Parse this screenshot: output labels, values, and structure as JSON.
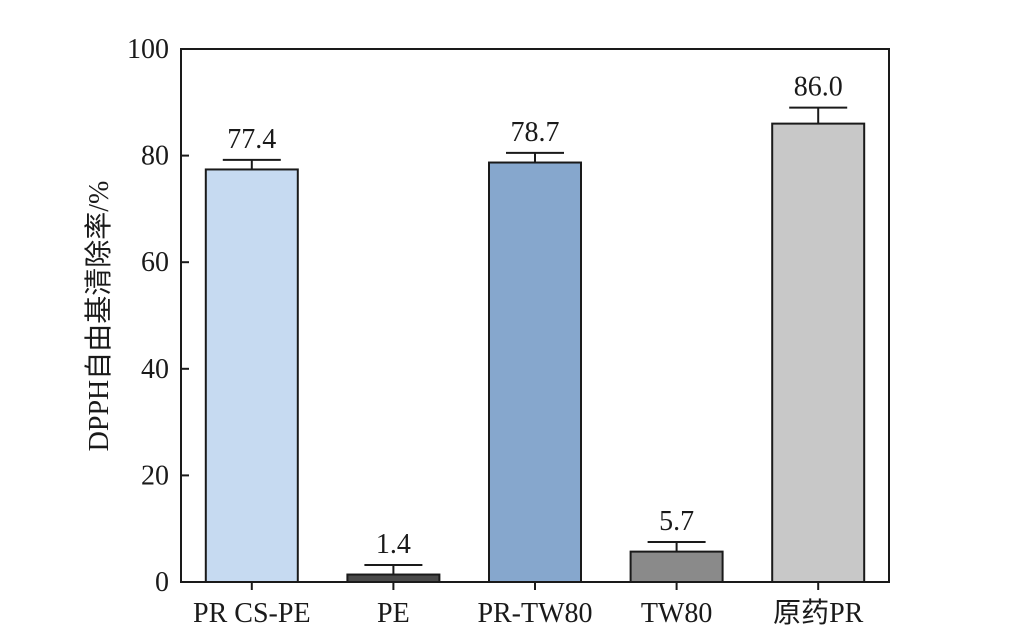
{
  "chart_data": {
    "type": "bar",
    "title": "",
    "xlabel": "",
    "ylabel": "DPPH自由基清除率/%",
    "categories": [
      "PR CS-PE",
      "PE",
      "PR-TW80",
      "TW80",
      "原药PR"
    ],
    "values": [
      77.4,
      1.4,
      78.7,
      5.7,
      86.0
    ],
    "value_labels": [
      "77.4",
      "1.4",
      "78.7",
      "5.7",
      "86.0"
    ],
    "errors": [
      1.8,
      1.8,
      1.8,
      1.8,
      3.0
    ],
    "bar_colors": [
      "#c6daf1",
      "#4a4a4a",
      "#86a7cd",
      "#8a8a8a",
      "#c8c8c8"
    ],
    "ylim": [
      0,
      100
    ],
    "yticks": [
      0,
      20,
      40,
      60,
      80,
      100
    ],
    "ytick_labels": [
      "0",
      "20",
      "40",
      "60",
      "80",
      "100"
    ],
    "grid": false,
    "legend": "none"
  }
}
